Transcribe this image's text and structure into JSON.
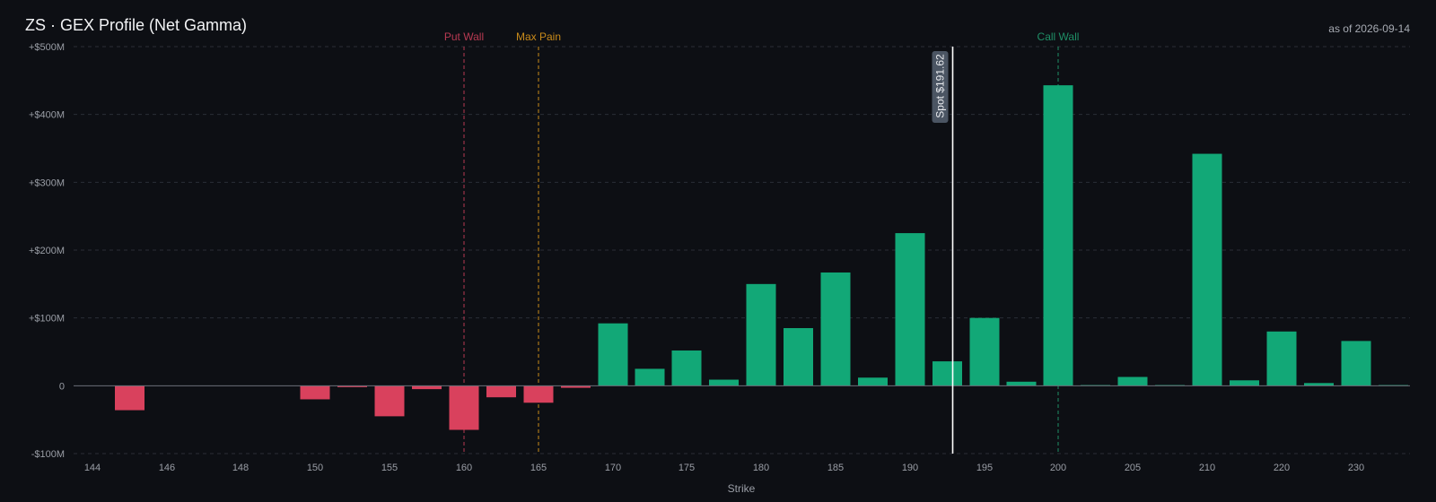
{
  "title": "ZS · GEX Profile (Net Gamma)",
  "as_of": "as of 2026-09-14",
  "colors": {
    "positive": "#12a877",
    "negative": "#d9415d",
    "put_wall": "#b83a52",
    "max_pain": "#c98b1a",
    "call_wall": "#1f8f66",
    "spot": "#ffffff",
    "background": "#0d0f14"
  },
  "chart_data": {
    "type": "bar",
    "title": "ZS · GEX Profile (Net Gamma)",
    "xlabel": "Strike",
    "ylabel": "",
    "ylim": [
      -100,
      500
    ],
    "y_unit": "$M",
    "ytick_values": [
      -100,
      0,
      100,
      200,
      300,
      400,
      500
    ],
    "ytick_labels": [
      "-$100M",
      "0",
      "+$100M",
      "+$200M",
      "+$300M",
      "+$400M",
      "+$500M"
    ],
    "xlim": [
      143.5,
      238.7
    ],
    "xtick_values": [
      144,
      146,
      148,
      150,
      155,
      160,
      165,
      170,
      175,
      180,
      185,
      190,
      195,
      200,
      205,
      210,
      220,
      230
    ],
    "xtick_labels": [
      "144",
      "146",
      "148",
      "150",
      "155",
      "160",
      "165",
      "170",
      "175",
      "180",
      "185",
      "190",
      "195",
      "200",
      "205",
      "210",
      "220",
      "230"
    ],
    "grid": "horizontal dashed",
    "bars": [
      {
        "label": "144",
        "value": 0
      },
      {
        "label": "145",
        "value": -36
      },
      {
        "label": "146",
        "value": 0
      },
      {
        "label": "147",
        "value": 0
      },
      {
        "label": "148",
        "value": 0
      },
      {
        "label": "149",
        "value": 0
      },
      {
        "label": "150",
        "value": -20
      },
      {
        "label": "152.5",
        "value": -2
      },
      {
        "label": "155",
        "value": -45
      },
      {
        "label": "157.5",
        "value": -5
      },
      {
        "label": "160",
        "value": -65
      },
      {
        "label": "162.5",
        "value": -17
      },
      {
        "label": "165",
        "value": -25
      },
      {
        "label": "167.5",
        "value": -3
      },
      {
        "label": "170",
        "value": 92
      },
      {
        "label": "172.5",
        "value": 25
      },
      {
        "label": "175",
        "value": 52
      },
      {
        "label": "177.5",
        "value": 9
      },
      {
        "label": "180",
        "value": 150
      },
      {
        "label": "182.5",
        "value": 85
      },
      {
        "label": "185",
        "value": 167
      },
      {
        "label": "187.5",
        "value": 12
      },
      {
        "label": "190",
        "value": 225
      },
      {
        "label": "192.5",
        "value": 36
      },
      {
        "label": "195",
        "value": 100
      },
      {
        "label": "197.5",
        "value": 6
      },
      {
        "label": "200",
        "value": 443
      },
      {
        "label": "202.5",
        "value": 1
      },
      {
        "label": "205",
        "value": 13
      },
      {
        "label": "207.5",
        "value": 1
      },
      {
        "label": "210",
        "value": 342
      },
      {
        "label": "215",
        "value": 8
      },
      {
        "label": "220",
        "value": 80
      },
      {
        "label": "225",
        "value": 4
      },
      {
        "label": "230",
        "value": 66
      },
      {
        "label": "235",
        "value": 1
      }
    ],
    "reference_lines": [
      {
        "name": "Put Wall",
        "label": "Put Wall",
        "x": 160
      },
      {
        "name": "Max Pain",
        "label": "Max Pain",
        "x": 165
      },
      {
        "name": "Call Wall",
        "label": "Call Wall",
        "x": 200
      }
    ],
    "spot": {
      "x": 192.5,
      "label": "Spot $191.62"
    }
  }
}
